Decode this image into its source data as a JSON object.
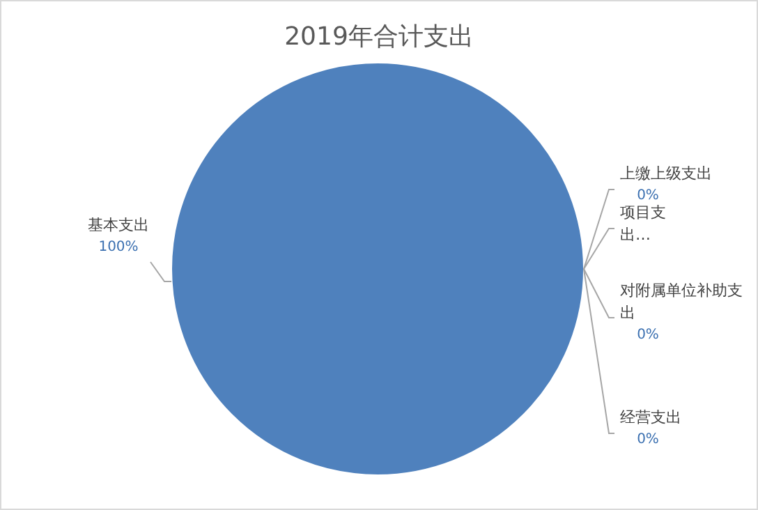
{
  "chart_data": {
    "type": "pie",
    "title": "2019年合计支出",
    "categories": [
      "基本支出",
      "上缴上级支出",
      "项目支出…",
      "对附属单位补助支出",
      "经营支出"
    ],
    "values": [
      100,
      0,
      0,
      0,
      0
    ],
    "colors": [
      "#4f81bd",
      "#c0504d",
      "#9bbb59",
      "#8064a2",
      "#4bacc6"
    ],
    "value_labels": [
      "100%",
      "0%",
      null,
      "0%",
      "0%"
    ]
  }
}
